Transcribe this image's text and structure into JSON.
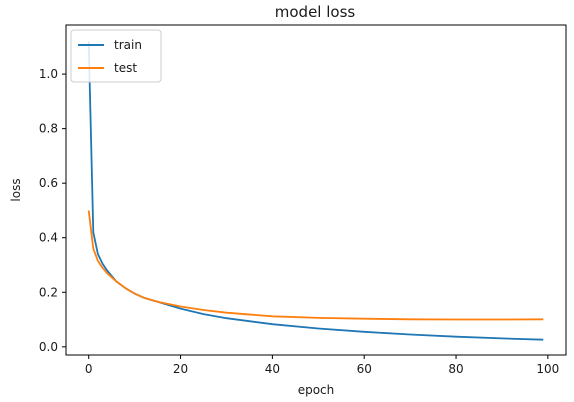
{
  "chart_data": {
    "type": "line",
    "title": "model loss",
    "xlabel": "epoch",
    "ylabel": "loss",
    "xlim": [
      -4.95,
      103.95
    ],
    "ylim": [
      -0.03,
      1.18
    ],
    "xticks": [
      0,
      20,
      40,
      60,
      80,
      100
    ],
    "yticks": [
      0.0,
      0.2,
      0.4,
      0.6,
      0.8,
      1.0
    ],
    "xtick_labels": [
      "0",
      "20",
      "40",
      "60",
      "80",
      "100"
    ],
    "ytick_labels": [
      "0.0",
      "0.2",
      "0.4",
      "0.6",
      "0.8",
      "1.0"
    ],
    "grid": false,
    "legend_position": "top-left",
    "series": [
      {
        "name": "train",
        "color": "#1f77b4",
        "x": [
          0,
          1,
          2,
          3,
          4,
          5,
          6,
          8,
          10,
          12,
          15,
          20,
          25,
          30,
          40,
          50,
          60,
          70,
          80,
          90,
          99
        ],
        "y": [
          1.12,
          0.42,
          0.34,
          0.305,
          0.28,
          0.26,
          0.24,
          0.215,
          0.195,
          0.18,
          0.165,
          0.14,
          0.12,
          0.105,
          0.083,
          0.067,
          0.055,
          0.045,
          0.037,
          0.031,
          0.026
        ]
      },
      {
        "name": "test",
        "color": "#ff7f0e",
        "x": [
          0,
          1,
          2,
          3,
          4,
          5,
          6,
          8,
          10,
          12,
          15,
          20,
          25,
          30,
          40,
          50,
          60,
          70,
          80,
          90,
          99
        ],
        "y": [
          0.5,
          0.36,
          0.315,
          0.29,
          0.27,
          0.255,
          0.24,
          0.215,
          0.195,
          0.18,
          0.165,
          0.148,
          0.135,
          0.125,
          0.112,
          0.106,
          0.103,
          0.101,
          0.1,
          0.1,
          0.101
        ]
      }
    ]
  }
}
